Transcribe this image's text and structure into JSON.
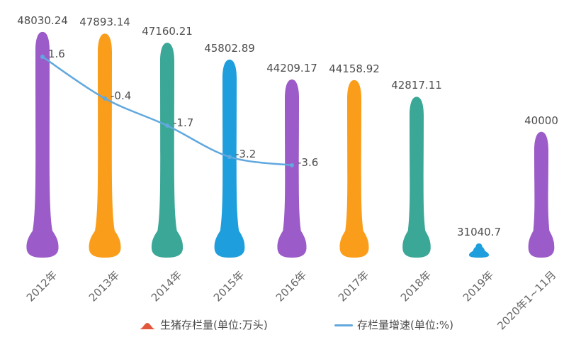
{
  "chart_data": {
    "type": "bar",
    "subtype": "pictorial teardrop bars with overlay line",
    "title": "",
    "background": "#FFFFFF",
    "grid": false,
    "categories": [
      "2012年",
      "2013年",
      "2014年",
      "2015年",
      "2016年",
      "2017年",
      "2018年",
      "2019年",
      "2020年1~11月"
    ],
    "series": [
      {
        "name": "生猪存栏量(单位:万头)",
        "type": "pictorial-bar",
        "values": [
          48030.24,
          47893.14,
          47160.21,
          45802.89,
          44209.17,
          44158.92,
          42817.11,
          31040.7,
          40000
        ],
        "value_labels": [
          "48030.24",
          "47893.14",
          "47160.21",
          "45802.89",
          "44209.17",
          "44158.92",
          "42817.11",
          "31040.7",
          "40000"
        ],
        "bar_colors": [
          "#9B5BC8",
          "#FA9D1A",
          "#3BA797",
          "#1E9EDC",
          "#9B5BC8",
          "#FA9D1A",
          "#3BA797",
          "#1E9EDC",
          "#9B5BC8"
        ]
      },
      {
        "name": "存栏量增速(单位:%)",
        "type": "line",
        "smooth": true,
        "x_categories": [
          "2012年",
          "2013年",
          "2014年",
          "2015年",
          "2016年"
        ],
        "values": [
          1.6,
          -0.4,
          -1.7,
          -3.2,
          -3.6
        ],
        "value_labels": [
          "1.6",
          "-0.4",
          "-1.7",
          "-3.2",
          "-3.6"
        ],
        "color": "#61A8DE"
      }
    ],
    "axes": {
      "x": {
        "visible_line": false,
        "label_rotation_deg": 45,
        "label_color": "#666666"
      },
      "y_left_implied": {
        "visible": false,
        "min": 29900,
        "max": 48200
      },
      "y_right_implied": {
        "visible": false,
        "min": -4.6,
        "max": 3.2
      }
    },
    "value_label_color": "#4D4D4D",
    "legend": {
      "position": "bottom",
      "items": [
        {
          "label": "生猪存栏量(单位:万头)",
          "symbol": "hill",
          "color": "#E2573C"
        },
        {
          "label": "存栏量增速(单位:%)",
          "symbol": "line",
          "color": "#61A8DE"
        }
      ]
    }
  }
}
